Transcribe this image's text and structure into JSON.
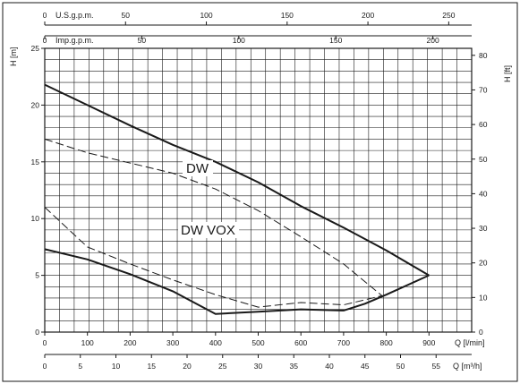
{
  "chart_data": {
    "type": "line",
    "axes": {
      "left": {
        "label": "H [m]",
        "range": [
          0,
          25
        ],
        "ticks": [
          0,
          5,
          10,
          15,
          20,
          25
        ]
      },
      "right": {
        "label": "H [ft]",
        "range": [
          0,
          82.02
        ],
        "ticks": [
          0,
          10,
          20,
          30,
          40,
          50,
          60,
          70,
          80
        ]
      },
      "bottom_main": {
        "label": "Q [l/min]",
        "range": [
          0,
          1000
        ],
        "ticks": [
          0,
          100,
          200,
          300,
          400,
          500,
          600,
          700,
          800,
          900
        ]
      },
      "bottom_secondary": {
        "label": "Q [m³/h]",
        "range": [
          0,
          60
        ],
        "ticks": [
          0,
          5,
          10,
          15,
          20,
          25,
          30,
          35,
          40,
          45,
          50,
          55
        ]
      },
      "top_us": {
        "label": "U.S.g.p.m.",
        "range": [
          0,
          264.2
        ],
        "ticks": [
          0,
          50,
          100,
          150,
          200,
          250
        ]
      },
      "top_imp": {
        "label": "Imp.g.p.m.",
        "range": [
          0,
          220
        ],
        "ticks": [
          0,
          50,
          100,
          150,
          200
        ]
      }
    },
    "grid": true,
    "series": [
      {
        "name": "DW",
        "style": "solid-bold",
        "x": [
          0,
          100,
          200,
          300,
          400,
          500,
          600,
          700,
          800,
          900
        ],
        "y": [
          21.8,
          20.0,
          18.2,
          16.5,
          15.0,
          13.2,
          11.1,
          9.2,
          7.2,
          5.0
        ]
      },
      {
        "name": "DW VOX",
        "style": "dashed",
        "x": [
          0,
          100,
          200,
          300,
          400,
          500,
          600,
          700,
          790
        ],
        "y": [
          17.0,
          15.8,
          14.9,
          14.0,
          12.6,
          10.7,
          8.4,
          6.0,
          3.2
        ]
      },
      {
        "name": "",
        "style": "dashed",
        "x": [
          0,
          100,
          200,
          300,
          400,
          500,
          600,
          700,
          790
        ],
        "y": [
          11.0,
          7.5,
          6.0,
          4.6,
          3.3,
          2.2,
          2.6,
          2.4,
          3.2
        ]
      },
      {
        "name": "",
        "style": "solid-bold",
        "x": [
          0,
          100,
          200,
          300,
          400,
          500,
          600,
          700,
          750,
          800,
          900
        ],
        "y": [
          7.3,
          6.4,
          5.1,
          3.6,
          1.6,
          1.8,
          2.0,
          1.9,
          2.5,
          3.3,
          5.0
        ]
      }
    ],
    "series_labels": [
      "DW",
      "DW VOX"
    ],
    "colors": {
      "ink": "#1a1a1a",
      "grid": "#1a1a1a",
      "background": "#ffffff"
    }
  }
}
